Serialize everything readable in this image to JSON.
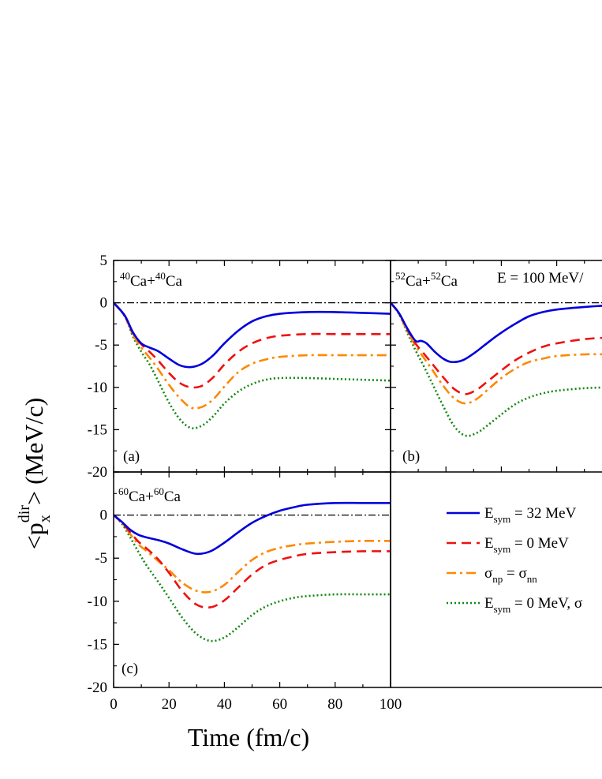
{
  "figure": {
    "xlabel": "Time (fm/c)",
    "ylabel_main": "<p",
    "ylabel_sub": "x",
    "ylabel_sup": "dir",
    "ylabel_tail": "> (MeV/c)",
    "energy_label": "E = 100 MeV/"
  },
  "colors": {
    "esym32": "#0000dd",
    "esym0": "#ee1111",
    "sigma": "#ff8800",
    "both": "#118811"
  },
  "legend": [
    {
      "key": "esym32",
      "main": "E",
      "sub": "sym",
      "tail": " = 32 MeV",
      "dash": ""
    },
    {
      "key": "esym0",
      "main": "E",
      "sub": "sym",
      "tail": " = 0 MeV",
      "dash": "12,7"
    },
    {
      "key": "sigma",
      "main": "σ",
      "sub": "np",
      "mid": " = σ",
      "sub2": "nn",
      "dash": "12,5,3,5"
    },
    {
      "key": "both",
      "main": "E",
      "sub": "sym",
      "tail": " = 0 MeV, σ",
      "dash": "2,3"
    }
  ],
  "chart_data": [
    {
      "type": "line",
      "panel": "(a)",
      "system": {
        "pre": "40",
        "a": "Ca+",
        "pre2": "40",
        "b": "Ca"
      },
      "xlim": [
        0,
        100
      ],
      "ylim": [
        -20,
        5
      ],
      "yticks": [
        "5",
        "0",
        "-5",
        "-10",
        "-15",
        "-20"
      ],
      "reference_line": 0,
      "series": [
        {
          "key": "esym32",
          "x": [
            0,
            4,
            7,
            10,
            13,
            16,
            20,
            24,
            28,
            32,
            36,
            40,
            45,
            50,
            55,
            60,
            70,
            80,
            90,
            100
          ],
          "y": [
            0,
            -1.5,
            -3.5,
            -4.8,
            -5.3,
            -5.7,
            -6.6,
            -7.4,
            -7.6,
            -7.2,
            -6.2,
            -4.8,
            -3.3,
            -2.2,
            -1.6,
            -1.3,
            -1.1,
            -1.1,
            -1.2,
            -1.3
          ]
        },
        {
          "key": "esym0",
          "x": [
            0,
            4,
            7,
            10,
            13,
            16,
            20,
            24,
            28,
            32,
            36,
            40,
            45,
            50,
            55,
            60,
            70,
            80,
            90,
            100
          ],
          "y": [
            0,
            -1.5,
            -3.6,
            -4.9,
            -5.8,
            -6.8,
            -8.3,
            -9.5,
            -10.0,
            -9.8,
            -8.8,
            -7.3,
            -5.8,
            -4.8,
            -4.2,
            -3.9,
            -3.7,
            -3.7,
            -3.7,
            -3.7
          ]
        },
        {
          "key": "sigma",
          "x": [
            0,
            4,
            7,
            10,
            13,
            16,
            20,
            24,
            28,
            32,
            36,
            40,
            45,
            50,
            55,
            60,
            70,
            80,
            90,
            100
          ],
          "y": [
            0,
            -1.6,
            -3.8,
            -5.3,
            -6.5,
            -7.8,
            -9.7,
            -11.3,
            -12.4,
            -12.3,
            -11.4,
            -9.9,
            -8.2,
            -7.2,
            -6.7,
            -6.4,
            -6.2,
            -6.2,
            -6.2,
            -6.2
          ]
        },
        {
          "key": "both",
          "x": [
            0,
            4,
            7,
            10,
            13,
            16,
            20,
            24,
            28,
            32,
            36,
            40,
            45,
            50,
            55,
            60,
            70,
            80,
            90,
            100
          ],
          "y": [
            0,
            -1.6,
            -4.0,
            -5.8,
            -7.3,
            -9.2,
            -11.8,
            -13.8,
            -14.8,
            -14.5,
            -13.4,
            -11.9,
            -10.5,
            -9.6,
            -9.1,
            -8.9,
            -8.9,
            -9.0,
            -9.1,
            -9.2
          ]
        }
      ]
    },
    {
      "type": "line",
      "panel": "(b)",
      "system": {
        "pre": "52",
        "a": "Ca+",
        "pre2": "52",
        "b": "Ca"
      },
      "xlim": [
        0,
        100
      ],
      "ylim": [
        -20,
        5
      ],
      "reference_line": 0,
      "series": [
        {
          "key": "esym32",
          "x": [
            0,
            3,
            6,
            9,
            11,
            13,
            16,
            19,
            22,
            26,
            30,
            34,
            38,
            42,
            46,
            50,
            55,
            60,
            70,
            80,
            90,
            100
          ],
          "y": [
            0,
            -1.2,
            -3.0,
            -4.5,
            -4.5,
            -4.8,
            -5.8,
            -6.6,
            -7.0,
            -6.8,
            -6.0,
            -5.0,
            -4.0,
            -3.1,
            -2.3,
            -1.6,
            -1.1,
            -0.8,
            -0.5,
            -0.3,
            -0.2,
            -0.2
          ]
        },
        {
          "key": "esym0",
          "x": [
            0,
            3,
            6,
            9,
            12,
            15,
            19,
            23,
            27,
            31,
            35,
            40,
            45,
            50,
            55,
            60,
            70,
            80,
            90,
            100
          ],
          "y": [
            0,
            -1.2,
            -3.1,
            -4.8,
            -6.0,
            -7.2,
            -8.8,
            -10.2,
            -10.8,
            -10.3,
            -9.3,
            -8.0,
            -6.8,
            -5.9,
            -5.2,
            -4.8,
            -4.3,
            -4.1,
            -4.0,
            -4.0
          ]
        },
        {
          "key": "sigma",
          "x": [
            0,
            3,
            6,
            9,
            12,
            15,
            19,
            23,
            27,
            31,
            35,
            40,
            45,
            50,
            55,
            60,
            70,
            80,
            90,
            100
          ],
          "y": [
            0,
            -1.3,
            -3.3,
            -5.1,
            -6.5,
            -7.9,
            -9.8,
            -11.3,
            -11.9,
            -11.4,
            -10.3,
            -8.9,
            -7.8,
            -7.0,
            -6.6,
            -6.3,
            -6.1,
            -6.1,
            -6.1,
            -6.1
          ]
        },
        {
          "key": "both",
          "x": [
            0,
            3,
            6,
            9,
            12,
            15,
            19,
            23,
            27,
            31,
            35,
            40,
            45,
            50,
            55,
            60,
            70,
            80,
            90,
            100
          ],
          "y": [
            0,
            -1.3,
            -3.5,
            -5.6,
            -7.5,
            -9.5,
            -12.2,
            -14.6,
            -15.7,
            -15.4,
            -14.5,
            -13.2,
            -12.0,
            -11.2,
            -10.7,
            -10.4,
            -10.1,
            -10.0,
            -10.0,
            -10.0
          ]
        }
      ]
    },
    {
      "type": "line",
      "panel": "(c)",
      "system": {
        "pre": "60",
        "a": "Ca+",
        "pre2": "60",
        "b": "Ca"
      },
      "xlim": [
        0,
        100
      ],
      "ylim": [
        -20,
        5
      ],
      "yticks": [
        "0",
        "-5",
        "-10",
        "-15",
        "-20"
      ],
      "xticks": [
        "0",
        "20",
        "40",
        "60",
        "80",
        "100"
      ],
      "reference_line": 0,
      "series": [
        {
          "key": "esym32",
          "x": [
            0,
            3,
            6,
            9,
            12,
            16,
            20,
            25,
            30,
            35,
            40,
            45,
            50,
            55,
            60,
            65,
            70,
            80,
            90,
            100
          ],
          "y": [
            0,
            -0.8,
            -1.7,
            -2.3,
            -2.6,
            -2.9,
            -3.3,
            -4.0,
            -4.5,
            -4.2,
            -3.2,
            -2.0,
            -0.9,
            -0.1,
            0.5,
            0.9,
            1.2,
            1.4,
            1.4,
            1.4
          ]
        },
        {
          "key": "esym0",
          "x": [
            0,
            3,
            6,
            9,
            12,
            16,
            20,
            25,
            30,
            35,
            40,
            45,
            50,
            55,
            60,
            65,
            70,
            80,
            90,
            100
          ],
          "y": [
            0,
            -0.9,
            -2.0,
            -3.1,
            -3.9,
            -5.1,
            -6.7,
            -8.9,
            -10.4,
            -10.7,
            -9.9,
            -8.4,
            -6.9,
            -5.8,
            -5.2,
            -4.8,
            -4.5,
            -4.3,
            -4.2,
            -4.2
          ]
        },
        {
          "key": "sigma",
          "x": [
            0,
            3,
            6,
            9,
            12,
            16,
            20,
            25,
            30,
            35,
            40,
            45,
            50,
            55,
            60,
            65,
            70,
            80,
            90,
            100
          ],
          "y": [
            0,
            -0.9,
            -2.2,
            -3.4,
            -4.2,
            -5.3,
            -6.4,
            -7.9,
            -8.8,
            -8.9,
            -8.1,
            -6.6,
            -5.2,
            -4.3,
            -3.8,
            -3.5,
            -3.3,
            -3.1,
            -3.0,
            -3.0
          ]
        },
        {
          "key": "both",
          "x": [
            0,
            3,
            6,
            9,
            12,
            16,
            20,
            25,
            30,
            35,
            40,
            45,
            50,
            55,
            60,
            65,
            70,
            80,
            90,
            100
          ],
          "y": [
            0,
            -1.0,
            -2.6,
            -4.3,
            -5.9,
            -7.7,
            -9.6,
            -12.0,
            -13.8,
            -14.6,
            -14.2,
            -13.0,
            -11.6,
            -10.6,
            -10.0,
            -9.6,
            -9.4,
            -9.2,
            -9.2,
            -9.2
          ]
        }
      ]
    }
  ]
}
